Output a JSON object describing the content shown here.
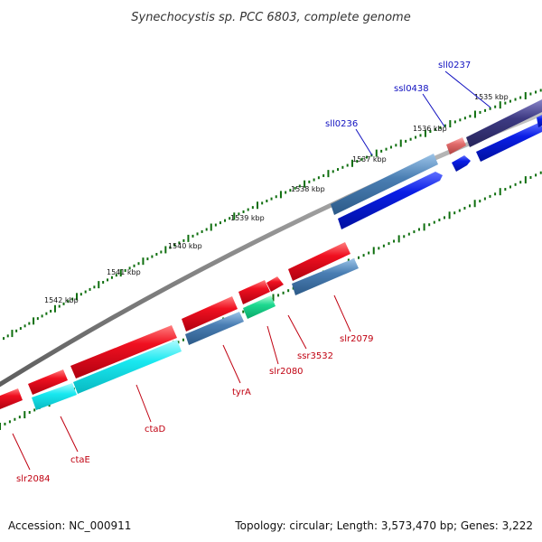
{
  "title": "Synechocystis sp. PCC 6803, complete genome",
  "accession": "Accession: NC_000911",
  "topology": "Topology: circular; Length: 3,573,470 bp; Genes: 3,222",
  "kbp_labels": [
    "1535 kbp",
    "1536 kbp",
    "1537 kbp",
    "1538 kbp",
    "1539 kbp",
    "1540 kbp",
    "1541 kbp",
    "1542 kbp"
  ],
  "colors": {
    "backbone": "#8c8c8c",
    "forward_cds": "#e8101a",
    "reverse_cds": "#0a1ee6",
    "steelblue_gene": "#4a7eb3",
    "cyan_gene": "#19e8f0",
    "green_gene": "#1ed890",
    "pink_gene": "#e06a6a",
    "navy_gene": "#3d3a82",
    "tick": "#0e6e0e",
    "label_forward": "#c00010",
    "label_reverse": "#1010c0"
  },
  "genes": [
    {
      "name": "sll0237",
      "strand": "reverse"
    },
    {
      "name": "ssl0438",
      "strand": "reverse"
    },
    {
      "name": "sll0236",
      "strand": "reverse"
    },
    {
      "name": "slr2079",
      "strand": "forward"
    },
    {
      "name": "ssr3532",
      "strand": "forward"
    },
    {
      "name": "slr2080",
      "strand": "forward"
    },
    {
      "name": "tyrA",
      "strand": "forward"
    },
    {
      "name": "ctaD",
      "strand": "forward"
    },
    {
      "name": "ctaE",
      "strand": "forward"
    },
    {
      "name": "slr2084",
      "strand": "forward"
    }
  ]
}
